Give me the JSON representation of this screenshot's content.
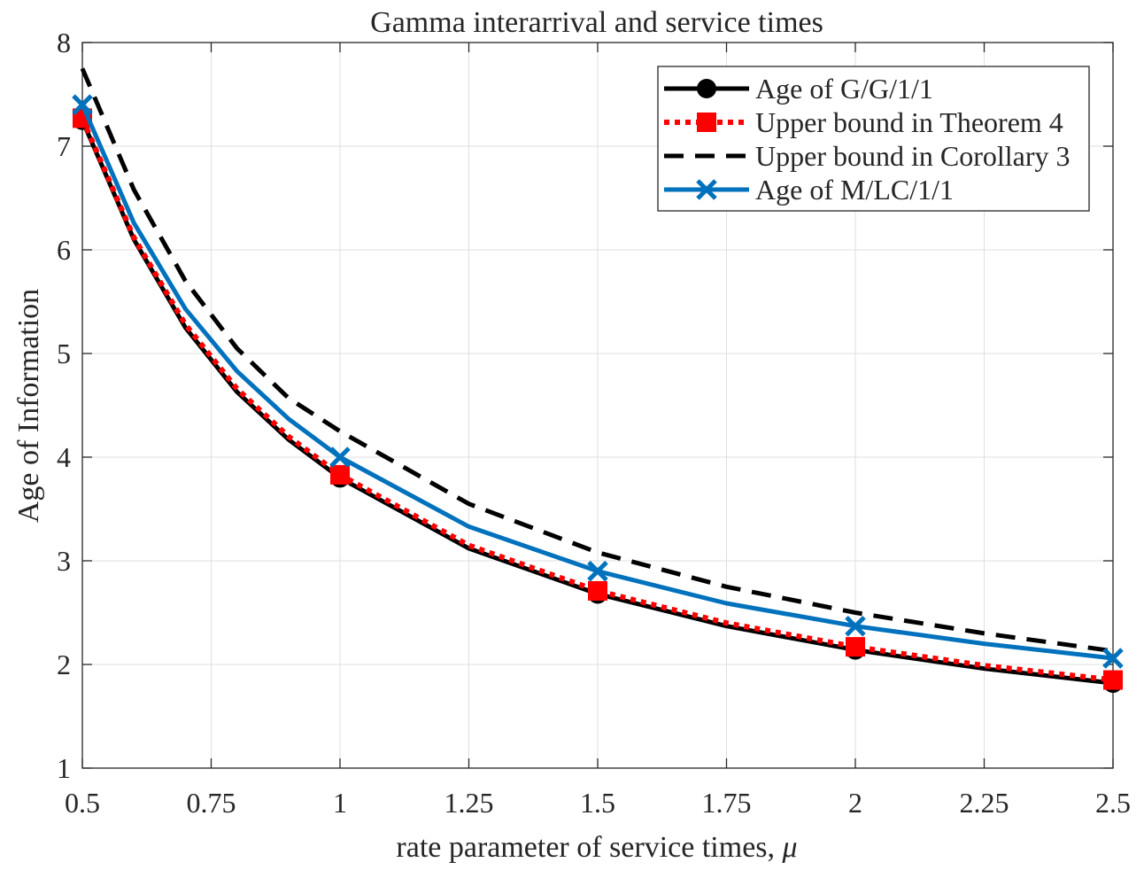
{
  "chart_data": {
    "type": "line",
    "title": "Gamma interarrival and service times",
    "xlabel": "rate parameter of service times, ",
    "xlabel_symbol": "μ",
    "ylabel": "Age of Information",
    "xlim": [
      0.5,
      2.5
    ],
    "ylim": [
      1,
      8
    ],
    "xticks": [
      0.5,
      0.75,
      1,
      1.25,
      1.5,
      1.75,
      2,
      2.25,
      2.5
    ],
    "xtick_labels": [
      "0.5",
      "0.75",
      "1",
      "1.25",
      "1.5",
      "1.75",
      "2",
      "2.25",
      "2.5"
    ],
    "yticks": [
      1,
      2,
      3,
      4,
      5,
      6,
      7,
      8
    ],
    "ytick_labels": [
      "1",
      "2",
      "3",
      "4",
      "5",
      "6",
      "7",
      "8"
    ],
    "grid": true,
    "legend_position": "top-right",
    "x": [
      0.5,
      0.6,
      0.7,
      0.8,
      0.9,
      1.0,
      1.25,
      1.5,
      1.75,
      2.0,
      2.25,
      2.5
    ],
    "series": [
      {
        "name": "Age of G/G/1/1",
        "color": "#000000",
        "style": "solid",
        "marker": "circle",
        "marker_x": [
          0.5,
          1.0,
          1.5,
          2.0,
          2.5
        ],
        "y": [
          7.25,
          6.1,
          5.25,
          4.63,
          4.17,
          3.8,
          3.12,
          2.68,
          2.37,
          2.14,
          1.96,
          1.82
        ]
      },
      {
        "name": "Upper bound in Theorem 4",
        "color": "#ff0000",
        "style": "dotted",
        "marker": "square",
        "marker_x": [
          0.5,
          1.0,
          1.5,
          2.0,
          2.5
        ],
        "y": [
          7.27,
          6.12,
          5.28,
          4.66,
          4.2,
          3.83,
          3.15,
          2.71,
          2.4,
          2.17,
          1.99,
          1.85
        ]
      },
      {
        "name": "Upper bound in Corollary 3",
        "color": "#000000",
        "style": "dashed",
        "marker": "none",
        "marker_x": [],
        "y": [
          7.75,
          6.58,
          5.7,
          5.05,
          4.57,
          4.25,
          3.55,
          3.08,
          2.75,
          2.5,
          2.3,
          2.13
        ]
      },
      {
        "name": "Age of M/LC/1/1",
        "color": "#0072bd",
        "style": "solid",
        "marker": "x",
        "marker_x": [
          0.5,
          1.0,
          1.5,
          2.0,
          2.5
        ],
        "y": [
          7.4,
          6.26,
          5.43,
          4.83,
          4.37,
          4.0,
          3.33,
          2.9,
          2.59,
          2.37,
          2.2,
          2.06
        ]
      }
    ]
  }
}
